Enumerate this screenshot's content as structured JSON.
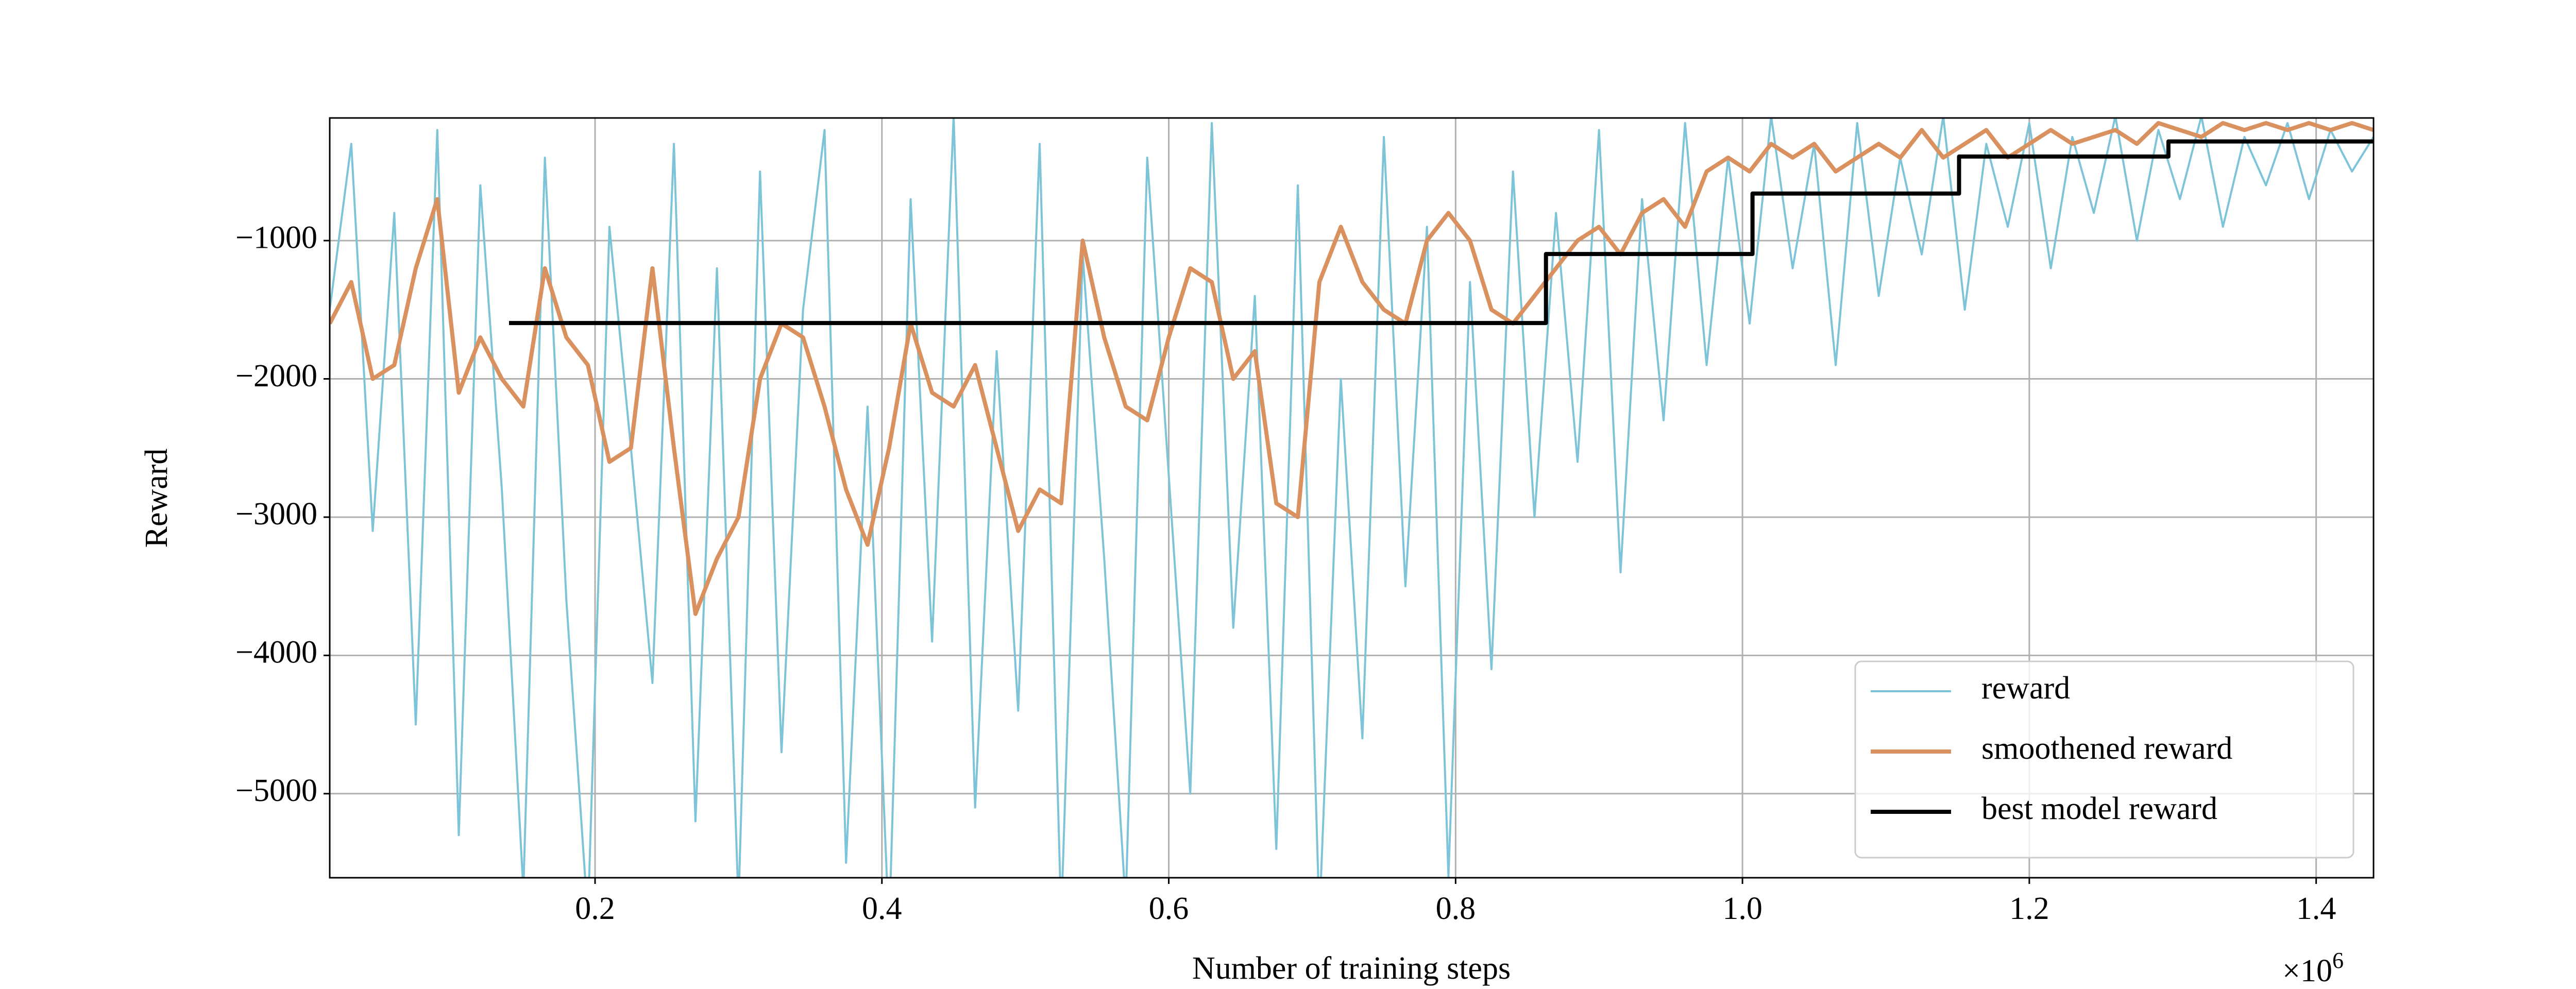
{
  "chart_data": {
    "type": "line",
    "xlabel": "Number of training steps",
    "ylabel": "Reward",
    "x_offset": {
      "base": "×10",
      "exponent": "6"
    },
    "x": [
      0.015,
      0.03,
      0.045,
      0.06,
      0.075,
      0.09,
      0.105,
      0.12,
      0.135,
      0.15,
      0.165,
      0.18,
      0.195,
      0.21,
      0.225,
      0.24,
      0.255,
      0.27,
      0.285,
      0.3,
      0.315,
      0.33,
      0.345,
      0.36,
      0.375,
      0.39,
      0.405,
      0.42,
      0.435,
      0.45,
      0.465,
      0.48,
      0.495,
      0.51,
      0.525,
      0.54,
      0.555,
      0.57,
      0.585,
      0.6,
      0.615,
      0.63,
      0.645,
      0.66,
      0.675,
      0.69,
      0.705,
      0.72,
      0.735,
      0.75,
      0.765,
      0.78,
      0.795,
      0.81,
      0.825,
      0.84,
      0.855,
      0.87,
      0.885,
      0.9,
      0.915,
      0.93,
      0.945,
      0.96,
      0.975,
      0.99,
      1.005,
      1.02,
      1.035,
      1.05,
      1.065,
      1.08,
      1.095,
      1.11,
      1.125,
      1.14,
      1.155,
      1.17,
      1.185,
      1.2,
      1.215,
      1.23,
      1.245,
      1.26,
      1.275,
      1.29,
      1.305,
      1.32,
      1.335,
      1.35,
      1.365,
      1.38,
      1.395,
      1.41,
      1.425,
      1.44
    ],
    "series": [
      {
        "name": "reward",
        "color": "#7ec4d8",
        "width": 4,
        "values": [
          -1500,
          -300,
          -3100,
          -800,
          -4500,
          -200,
          -5300,
          -600,
          -2800,
          -5700,
          -400,
          -3600,
          -5900,
          -900,
          -2500,
          -4200,
          -300,
          -5200,
          -1200,
          -5800,
          -500,
          -4700,
          -1500,
          -200,
          -5500,
          -2200,
          -6000,
          -700,
          -3900,
          -100,
          -5100,
          -1800,
          -4400,
          -300,
          -5900,
          -1100,
          -3300,
          -5800,
          -400,
          -2700,
          -5000,
          -150,
          -3800,
          -1400,
          -5400,
          -600,
          -5900,
          -2000,
          -4600,
          -250,
          -3500,
          -900,
          -5600,
          -1300,
          -4100,
          -500,
          -3000,
          -800,
          -2600,
          -200,
          -3400,
          -700,
          -2300,
          -150,
          -1900,
          -400,
          -1600,
          -100,
          -1200,
          -300,
          -1900,
          -150,
          -1400,
          -400,
          -1100,
          -100,
          -1500,
          -300,
          -900,
          -150,
          -1200,
          -250,
          -800,
          -100,
          -1000,
          -200,
          -700,
          -100,
          -900,
          -250,
          -600,
          -150,
          -700,
          -200,
          -500,
          -250
        ]
      },
      {
        "name": "smoothened reward",
        "color": "#d9915f",
        "width": 8,
        "values": [
          -1600,
          -1300,
          -2000,
          -1900,
          -1200,
          -700,
          -2100,
          -1700,
          -2000,
          -2200,
          -1200,
          -1700,
          -1900,
          -2600,
          -2500,
          -1200,
          -2500,
          -3700,
          -3300,
          -3000,
          -2000,
          -1600,
          -1700,
          -2200,
          -2800,
          -3200,
          -2500,
          -1600,
          -2100,
          -2200,
          -1900,
          -2500,
          -3100,
          -2800,
          -2900,
          -1000,
          -1700,
          -2200,
          -2300,
          -1700,
          -1200,
          -1300,
          -2000,
          -1800,
          -2900,
          -3000,
          -1300,
          -900,
          -1300,
          -1500,
          -1600,
          -1000,
          -800,
          -1000,
          -1500,
          -1600,
          -1400,
          -1200,
          -1000,
          -900,
          -1100,
          -800,
          -700,
          -900,
          -500,
          -400,
          -500,
          -300,
          -400,
          -300,
          -500,
          -400,
          -300,
          -400,
          -200,
          -400,
          -300,
          -200,
          -400,
          -300,
          -200,
          -300,
          -250,
          -200,
          -300,
          -150,
          -200,
          -250,
          -150,
          -200,
          -150,
          -200,
          -150,
          -200,
          -150,
          -200
        ]
      },
      {
        "name": "best model reward",
        "color": "#000000",
        "width": 8,
        "x": [
          0.14,
          0.863,
          0.863,
          1.007,
          1.007,
          1.151,
          1.151,
          1.297,
          1.297,
          1.44
        ],
        "values": [
          -1596,
          -1596,
          -1097,
          -1097,
          -660,
          -660,
          -392,
          -392,
          -283,
          -283
        ]
      }
    ],
    "xlim": [
      0.015,
      1.44
    ],
    "xticks": [
      0.2,
      0.4,
      0.6,
      0.8,
      {
        "value": 1,
        "label": "1.0"
      },
      1.2,
      1.4
    ],
    "ylim": [
      -5608,
      -113
    ],
    "yticks": [
      {
        "value": -5000,
        "label": "−5000"
      },
      {
        "value": -4000,
        "label": "−4000"
      },
      {
        "value": -3000,
        "label": "−3000"
      },
      {
        "value": -2000,
        "label": "−2000"
      },
      {
        "value": -1000,
        "label": "−1000"
      }
    ],
    "grid": true,
    "legend": "lower right"
  }
}
